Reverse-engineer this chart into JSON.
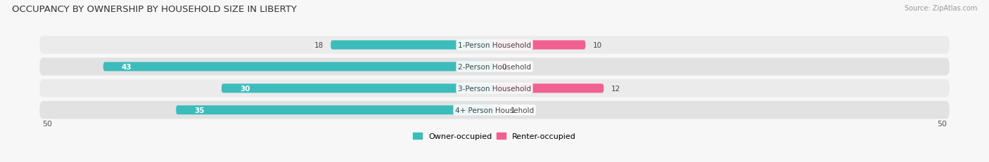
{
  "title": "OCCUPANCY BY OWNERSHIP BY HOUSEHOLD SIZE IN LIBERTY",
  "source": "Source: ZipAtlas.com",
  "categories": [
    "1-Person Household",
    "2-Person Household",
    "3-Person Household",
    "4+ Person Household"
  ],
  "owner_values": [
    18,
    43,
    30,
    35
  ],
  "renter_values": [
    10,
    0,
    12,
    1
  ],
  "owner_color": "#3DBCBC",
  "renter_color_strong": "#F06090",
  "renter_color_light": "#F0A0C0",
  "row_bg_colors": [
    "#EBEBEB",
    "#E2E2E2",
    "#EBEBEB",
    "#E2E2E2"
  ],
  "max_val": 50,
  "figsize": [
    14.06,
    2.32
  ],
  "dpi": 100,
  "bg_color": "#F7F7F7"
}
